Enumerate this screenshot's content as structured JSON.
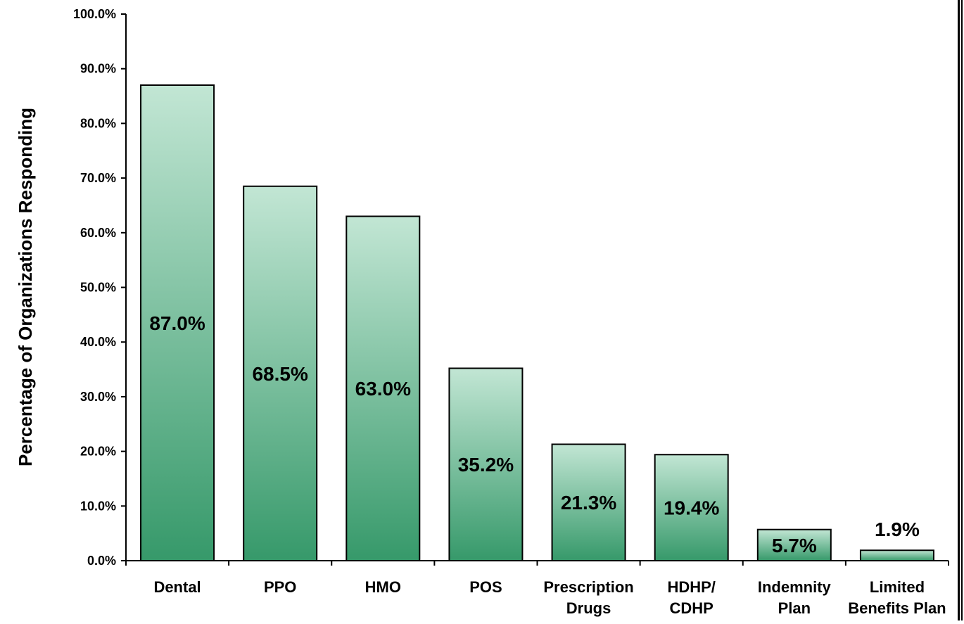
{
  "chart_data": {
    "type": "bar",
    "title": "",
    "xlabel": "",
    "ylabel": "Percentage of Organizations Responding",
    "ylim": [
      0,
      100
    ],
    "yticks": [
      "0.0%",
      "10.0%",
      "20.0%",
      "30.0%",
      "40.0%",
      "50.0%",
      "60.0%",
      "70.0%",
      "80.0%",
      "90.0%",
      "100.0%"
    ],
    "categories": [
      [
        "Dental"
      ],
      [
        "PPO"
      ],
      [
        "HMO"
      ],
      [
        "POS"
      ],
      [
        "Prescription",
        "Drugs"
      ],
      [
        "HDHP/",
        "CDHP"
      ],
      [
        "Indemnity",
        "Plan"
      ],
      [
        "Limited",
        "Benefits Plan"
      ]
    ],
    "values": [
      87.0,
      68.5,
      63.0,
      35.2,
      21.3,
      19.4,
      5.7,
      1.9
    ],
    "data_labels": [
      "87.0%",
      "68.5%",
      "63.0%",
      "35.2%",
      "21.3%",
      "19.4%",
      "5.7%",
      "1.9%"
    ],
    "grid": false,
    "legend": "none",
    "colors": {
      "bar_top": "#c2e6d4",
      "bar_bottom": "#36996a",
      "bar_stroke": "#000000"
    }
  }
}
